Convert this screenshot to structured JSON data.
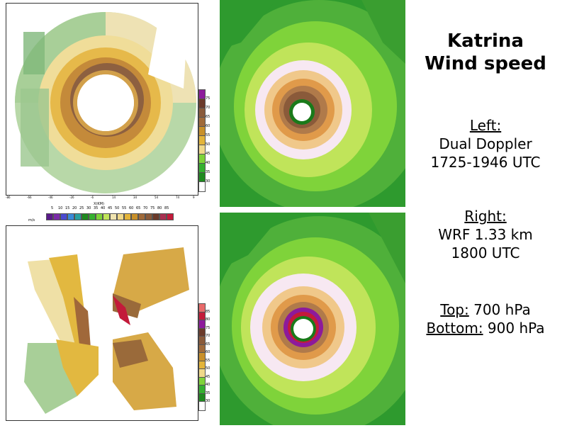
{
  "title": {
    "line1": "Katrina",
    "line2": "Wind speed"
  },
  "left": {
    "label": "Left:",
    "line1": "Dual Doppler",
    "line2": "1725-1946 UTC"
  },
  "right": {
    "label": "Right:",
    "line1": "WRF 1.33 km",
    "line2": "1800 UTC"
  },
  "top": {
    "label": "Top:",
    "value": " 700 hPa"
  },
  "bottom": {
    "label": "Bottom:",
    "value": " 900 hPa"
  },
  "top_colorbar": {
    "labels": [
      "75",
      "70",
      "65",
      "60",
      "55",
      "50",
      "45",
      "40",
      "35",
      "30"
    ],
    "colors": [
      "#8d1a9b",
      "#6b3a2a",
      "#8a5a3a",
      "#a06a3a",
      "#c8902a",
      "#e3b43a",
      "#f0d98a",
      "#7fd33a",
      "#35b030",
      "#1f8a1f",
      "#ffffff"
    ]
  },
  "bottom_colorbar": {
    "labels": [
      "85",
      "80",
      "75",
      "70",
      "65",
      "60",
      "55",
      "50",
      "45",
      "40",
      "35",
      "30"
    ],
    "colors": [
      "#e86a6a",
      "#c31a3a",
      "#8d1a9b",
      "#6b3a2a",
      "#8a5a3a",
      "#a06a3a",
      "#c8902a",
      "#e3b43a",
      "#f0d98a",
      "#7fd33a",
      "#35b030",
      "#1f8a1f",
      "#ffffff"
    ]
  },
  "horizontal_colorbar": {
    "unit": "m/s",
    "labels": [
      "5",
      "10",
      "15",
      "20",
      "25",
      "30",
      "35",
      "40",
      "45",
      "50",
      "55",
      "60",
      "65",
      "70",
      "75",
      "80",
      "85"
    ]
  },
  "x_axis_label": "X(KM)"
}
